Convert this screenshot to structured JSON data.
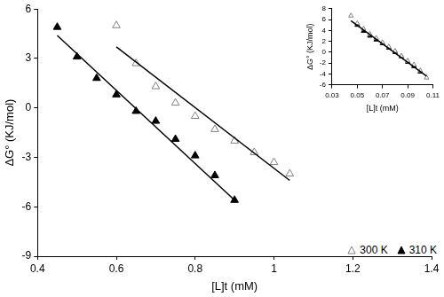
{
  "chart_data": [
    {
      "type": "scatter",
      "x_label": "[L]t (mM)",
      "y_label": "ΔG° (KJ/mol)",
      "xlim": [
        0.4,
        1.4
      ],
      "xticks": [
        0.4,
        0.6,
        0.8,
        1,
        1.2,
        1.4
      ],
      "ylim": [
        -9,
        6
      ],
      "yticks": [
        -9,
        -6,
        -3,
        0,
        3,
        6
      ],
      "grid": false,
      "legend": "lower right",
      "series": [
        {
          "name": "300 K",
          "color": "#808080",
          "marker": "triangle_open",
          "x": [
            0.6,
            0.65,
            0.7,
            0.75,
            0.8,
            0.85,
            0.9,
            0.95,
            1.0,
            1.04
          ],
          "values": [
            5.0,
            2.7,
            1.3,
            0.3,
            -0.5,
            -1.3,
            -2.0,
            -2.7,
            -3.3,
            -4.0
          ],
          "fit_line": {
            "x": [
              0.6,
              1.04
            ],
            "values": [
              3.7,
              -4.4
            ]
          }
        },
        {
          "name": "310 K",
          "color": "#000000",
          "marker": "triangle",
          "x": [
            0.45,
            0.5,
            0.55,
            0.6,
            0.65,
            0.7,
            0.75,
            0.8,
            0.85,
            0.9
          ],
          "values": [
            4.9,
            3.1,
            1.8,
            0.8,
            -0.2,
            -0.8,
            -1.9,
            -2.9,
            -4.1,
            -5.6
          ],
          "fit_line": {
            "x": [
              0.45,
              0.9
            ],
            "values": [
              4.4,
              -5.6
            ]
          }
        }
      ]
    },
    {
      "type": "scatter",
      "x_label": "[L]t (mM)",
      "y_label": "ΔG° (KJ/mol)",
      "xlim": [
        0.03,
        0.11
      ],
      "xticks": [
        0.03,
        0.05,
        0.07,
        0.09,
        0.11
      ],
      "ylim": [
        -6,
        8
      ],
      "yticks": [
        -6,
        -4,
        -2,
        0,
        2,
        4,
        6,
        8
      ],
      "grid": false,
      "fit_line": {
        "x": [
          0.045,
          0.105
        ],
        "values": [
          5.8,
          -4.4
        ]
      },
      "series": [
        {
          "name": "300 K",
          "color": "#808080",
          "marker": "triangle_open",
          "x": [
            0.045,
            0.05,
            0.055,
            0.06,
            0.065,
            0.07,
            0.075,
            0.08,
            0.085,
            0.09,
            0.095,
            0.1,
            0.105
          ],
          "values": [
            6.7,
            5.3,
            4.3,
            3.3,
            2.6,
            1.8,
            1.0,
            0.2,
            -0.7,
            -1.6,
            -2.3,
            -3.4,
            -4.7
          ]
        },
        {
          "name": "310 K",
          "color": "#000000",
          "marker": "triangle",
          "x": [
            0.05,
            0.055,
            0.06,
            0.065,
            0.07,
            0.075,
            0.08,
            0.085,
            0.09,
            0.095,
            0.1
          ],
          "values": [
            5.0,
            3.9,
            3.0,
            2.3,
            1.6,
            0.8,
            0.0,
            -0.8,
            -1.8,
            -2.6,
            -3.6
          ]
        }
      ]
    }
  ]
}
